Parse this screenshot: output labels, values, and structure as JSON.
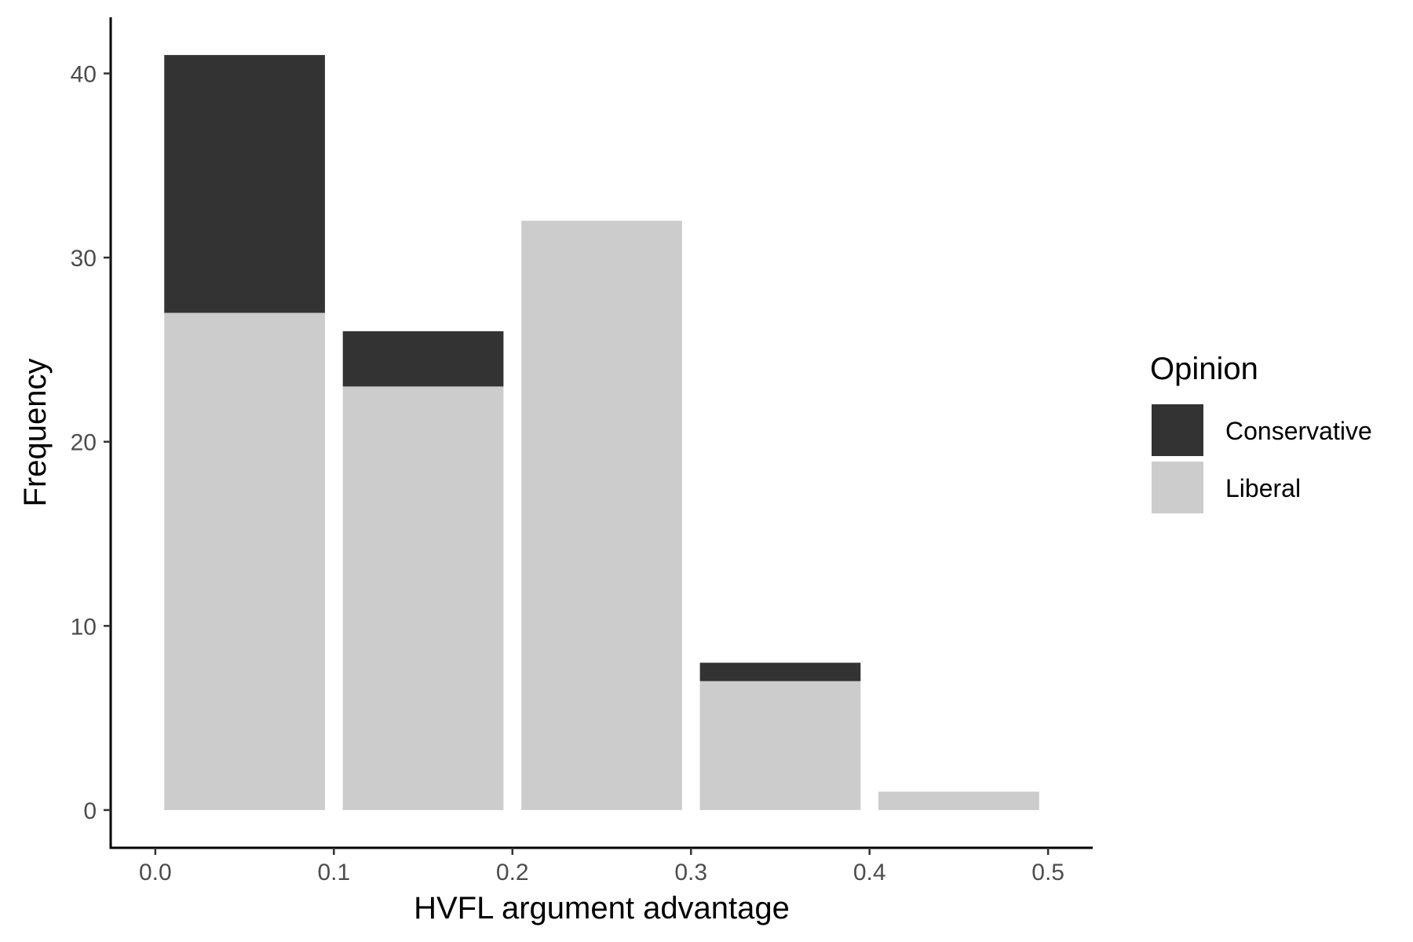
{
  "chart_data": {
    "type": "bar",
    "stacked": true,
    "title": "",
    "xlabel": "HVFL argument advantage",
    "ylabel": "Frequency",
    "x": [
      0.05,
      0.15,
      0.25,
      0.35,
      0.45
    ],
    "bin_width": 0.1,
    "series": [
      {
        "name": "Liberal",
        "values": [
          27,
          23,
          32,
          7,
          1
        ],
        "color": "#cccccc"
      },
      {
        "name": "Conservative",
        "values": [
          14,
          3,
          0,
          1,
          0
        ],
        "color": "#333333"
      }
    ],
    "xlim": [
      -0.025,
      0.525
    ],
    "ylim": [
      -2.05,
      43.05
    ],
    "xticks": [
      0.0,
      0.1,
      0.2,
      0.3,
      0.4,
      0.5
    ],
    "xtick_labels": [
      "0.0",
      "0.1",
      "0.2",
      "0.3",
      "0.4",
      "0.5"
    ],
    "yticks": [
      0,
      10,
      20,
      30,
      40
    ],
    "ytick_labels": [
      "0",
      "10",
      "20",
      "30",
      "40"
    ],
    "grid": false,
    "legend": {
      "title": "Opinion",
      "placement": "right",
      "entries": [
        {
          "label": "Conservative",
          "color": "#333333"
        },
        {
          "label": "Liberal",
          "color": "#cccccc"
        }
      ]
    }
  }
}
